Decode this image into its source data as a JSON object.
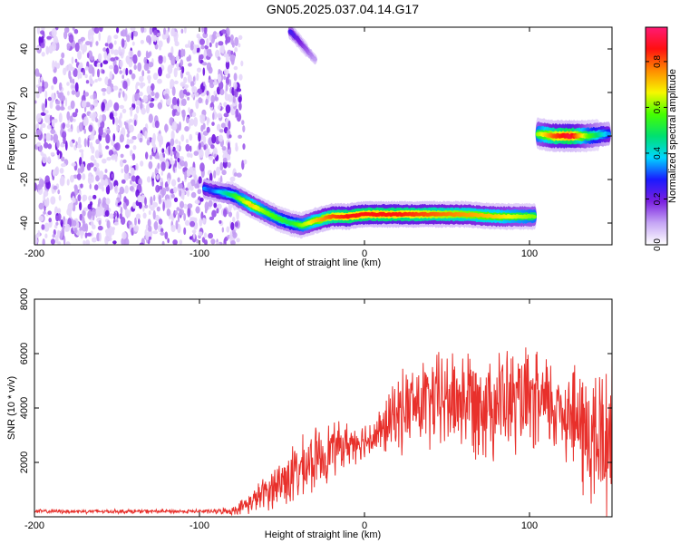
{
  "title": "GN05.2025.037.04.14.G17",
  "chart_data": [
    {
      "type": "heatmap",
      "xlabel": "Height of straight line (km)",
      "ylabel": "Frequency (Hz)",
      "xlim": [
        -200,
        150
      ],
      "ylim": [
        -50,
        50
      ],
      "xticks": [
        -200,
        -100,
        0,
        100
      ],
      "yticks": [
        -40,
        -20,
        0,
        20,
        40
      ],
      "colorbar": {
        "label": "Normalized spectral amplitude",
        "range": [
          0.0,
          0.95
        ],
        "ticks": [
          0.0,
          0.2,
          0.4,
          0.6,
          0.8
        ],
        "colors": [
          "#ffffff",
          "#c6a6f5",
          "#7a1fe0",
          "#1a1aff",
          "#00d5ff",
          "#00e070",
          "#46ff00",
          "#f7f700",
          "#ff8c00",
          "#ff1010",
          "#ff1a75"
        ]
      },
      "noise_region": {
        "x": [
          -200,
          -75
        ],
        "y": [
          -50,
          50
        ],
        "level": 0.15
      },
      "signal_track": [
        {
          "x": -97,
          "y": -24,
          "a": 0.35
        },
        {
          "x": -93,
          "y": -25,
          "a": 0.3
        },
        {
          "x": -80,
          "y": -27,
          "a": 0.5
        },
        {
          "x": -75,
          "y": -29,
          "a": 0.6
        },
        {
          "x": -68,
          "y": -32,
          "a": 0.7
        },
        {
          "x": -60,
          "y": -35,
          "a": 0.6
        },
        {
          "x": -52,
          "y": -38,
          "a": 0.55
        },
        {
          "x": -45,
          "y": -40,
          "a": 0.5
        },
        {
          "x": -38,
          "y": -41,
          "a": 0.6
        },
        {
          "x": -30,
          "y": -39,
          "a": 0.7
        },
        {
          "x": -20,
          "y": -37,
          "a": 0.8
        },
        {
          "x": -10,
          "y": -37,
          "a": 0.85
        },
        {
          "x": 0,
          "y": -36,
          "a": 0.85
        },
        {
          "x": 20,
          "y": -36,
          "a": 0.85
        },
        {
          "x": 40,
          "y": -36,
          "a": 0.8
        },
        {
          "x": 60,
          "y": -36,
          "a": 0.75
        },
        {
          "x": 80,
          "y": -37,
          "a": 0.7
        },
        {
          "x": 103,
          "y": -37,
          "a": 0.6
        }
      ],
      "upper_feature": [
        {
          "x": -45,
          "y": 48,
          "a": 0.25
        },
        {
          "x": -40,
          "y": 44,
          "a": 0.2
        },
        {
          "x": -30,
          "y": 35,
          "a": 0.1
        }
      ],
      "end_feature": [
        {
          "x": 105,
          "y": 1,
          "a": 0.6
        },
        {
          "x": 115,
          "y": 0,
          "a": 0.8
        },
        {
          "x": 125,
          "y": 0,
          "a": 0.9
        },
        {
          "x": 135,
          "y": 0,
          "a": 0.6
        },
        {
          "x": 148,
          "y": 1,
          "a": 0.35
        }
      ]
    },
    {
      "type": "line",
      "xlabel": "Height of straight line (km)",
      "ylabel": "SNR (10 * v/v)",
      "xlim": [
        -200,
        150
      ],
      "ylim": [
        0,
        8000
      ],
      "xticks": [
        -200,
        -100,
        0,
        100
      ],
      "yticks": [
        2000,
        4000,
        6000,
        8000
      ],
      "color": "#e8302b",
      "series": [
        {
          "x": [
            -200,
            -180,
            -160,
            -140,
            -120,
            -100,
            -90,
            -80,
            -75,
            -70,
            -65,
            -60,
            -55,
            -50,
            -45,
            -40,
            -35,
            -30,
            -25,
            -20,
            -15,
            -10,
            -5,
            0,
            5,
            10,
            15,
            20,
            25,
            30,
            40,
            50,
            60,
            70,
            80,
            90,
            100,
            110,
            120,
            125,
            130,
            135,
            140,
            145,
            150
          ],
          "y": [
            200,
            200,
            200,
            200,
            200,
            200,
            200,
            220,
            350,
            500,
            700,
            900,
            1100,
            1300,
            1500,
            1650,
            1850,
            2100,
            2250,
            2500,
            2600,
            2650,
            2800,
            2800,
            2950,
            3100,
            3450,
            3800,
            4000,
            4100,
            4200,
            4300,
            4350,
            4300,
            4250,
            4200,
            4150,
            4100,
            4000,
            3800,
            3300,
            3000,
            2700,
            2800,
            3200
          ],
          "spread": [
            60,
            60,
            60,
            60,
            60,
            60,
            70,
            120,
            200,
            300,
            400,
            500,
            650,
            800,
            900,
            900,
            900,
            900,
            900,
            800,
            700,
            650,
            600,
            550,
            650,
            750,
            900,
            1100,
            1200,
            1300,
            1400,
            1500,
            1600,
            1650,
            1650,
            1550,
            1500,
            1500,
            1400,
            1600,
            1900,
            2200,
            2400,
            2600,
            2700
          ]
        }
      ]
    }
  ]
}
